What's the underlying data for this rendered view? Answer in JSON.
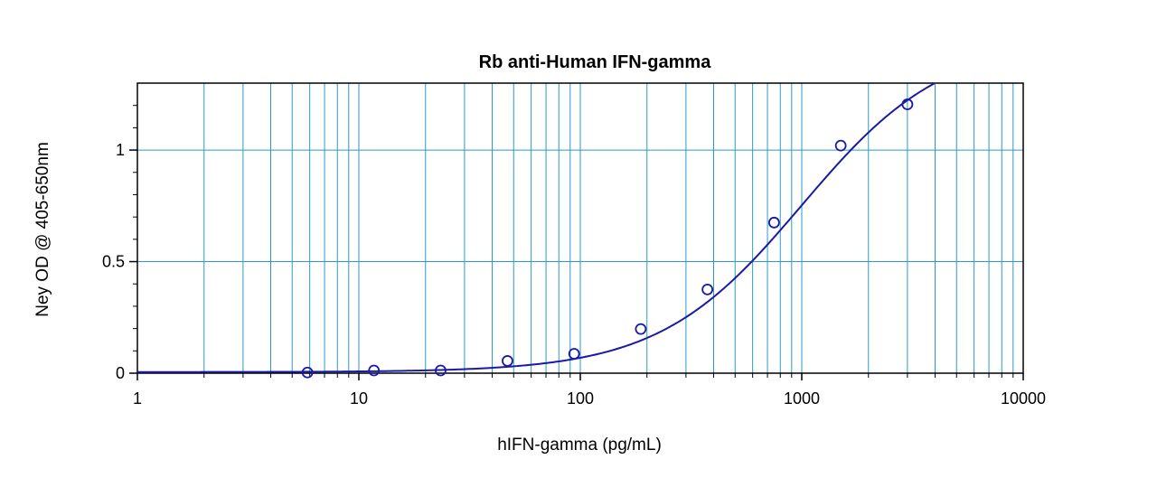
{
  "chart_data": {
    "type": "scatter",
    "title": "Rb anti-Human IFN-gamma",
    "xlabel": "hIFN-gamma (pg/mL)",
    "ylabel": "Ney OD @ 405-650nm",
    "x_scale": "log",
    "xlim": [
      1,
      10000
    ],
    "ylim": [
      0,
      1.3
    ],
    "x_ticks": [
      {
        "value": 1,
        "label": "1"
      },
      {
        "value": 10,
        "label": "10"
      },
      {
        "value": 100,
        "label": "100"
      },
      {
        "value": 1000,
        "label": "1000"
      },
      {
        "value": 10000,
        "label": "10000"
      }
    ],
    "y_ticks": [
      {
        "value": 0,
        "label": "0"
      },
      {
        "value": 0.5,
        "label": "0.5"
      },
      {
        "value": 1,
        "label": "1"
      }
    ],
    "grid": true,
    "legend": "none",
    "series": [
      {
        "points": [
          {
            "x": 5.86,
            "y": 0.003
          },
          {
            "x": 11.7,
            "y": 0.012
          },
          {
            "x": 23.4,
            "y": 0.012
          },
          {
            "x": 46.9,
            "y": 0.055
          },
          {
            "x": 93.8,
            "y": 0.087
          },
          {
            "x": 187.5,
            "y": 0.198
          },
          {
            "x": 375,
            "y": 0.375
          },
          {
            "x": 750,
            "y": 0.675
          },
          {
            "x": 1500,
            "y": 1.02
          },
          {
            "x": 3000,
            "y": 1.205
          }
        ]
      }
    ],
    "fit_curve": {
      "model": "4PL",
      "bottom": 0.005,
      "top": 1.5,
      "ec50": 1000,
      "hill": 1.35
    },
    "colors": {
      "grid": "#2a9bc4",
      "curve": "#1a1aa6",
      "markers": "#1a1aa6",
      "axis": "#000000"
    }
  }
}
